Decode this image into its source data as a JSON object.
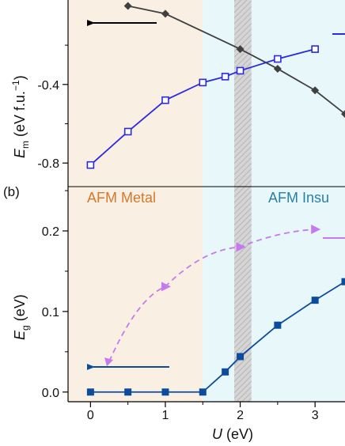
{
  "chart_data": [
    {
      "panel": "a",
      "type": "line",
      "ylabel": {
        "symbol": "E",
        "subscript": "m",
        "unit": " (eV f.u.",
        "exp": "−1",
        "close": ")"
      },
      "ylim": [
        -0.92,
        0.03
      ],
      "yticks": [
        -0.4,
        -0.8
      ],
      "ytick_labels": [
        "-0.4",
        "-0.8"
      ],
      "series": [
        {
          "color": "#404040",
          "marker": "diamond-filled",
          "x": [
            0.5,
            1,
            2,
            2.5,
            3,
            3.4
          ],
          "y": [
            0.0,
            -0.04,
            -0.22,
            -0.32,
            -0.43,
            -0.55
          ]
        },
        {
          "color": "#2a2ae0",
          "marker": "square-open",
          "x": [
            0,
            0.5,
            1,
            1.5,
            1.8,
            2,
            2.5,
            3
          ],
          "y": [
            -0.81,
            -0.64,
            -0.48,
            -0.39,
            -0.36,
            -0.33,
            -0.27,
            -0.22
          ]
        }
      ]
    },
    {
      "panel": "b",
      "panel_label": "(b)",
      "type": "line",
      "xlabel": {
        "symbol": "U",
        "unit": " (eV)"
      },
      "ylabel": {
        "symbol": "E",
        "subscript": "g",
        "unit": " (eV)"
      },
      "xlim": [
        -0.3,
        3.4
      ],
      "ylim": [
        -0.012,
        0.255
      ],
      "xticks": [
        0,
        1,
        2,
        3
      ],
      "xtick_labels": [
        "0",
        "1",
        "2",
        "3"
      ],
      "yticks": [
        0.0,
        0.1,
        0.2
      ],
      "ytick_labels": [
        "0.0",
        "0.1",
        "0.2"
      ],
      "regions": [
        {
          "label": "AFM Metal",
          "color": "#f9efe3",
          "label_color": "#d9772a",
          "x": [
            -0.3,
            1.5
          ]
        },
        {
          "label": "AFM Insu",
          "color": "#e8f7fa",
          "label_color": "#2a7fa5",
          "x": [
            1.5,
            3.4
          ]
        }
      ],
      "hatched_band": [
        1.92,
        2.15
      ],
      "series": [
        {
          "color": "#0c4c9c",
          "marker": "square-filled",
          "x": [
            0,
            0.5,
            1,
            1.5,
            1.8,
            2,
            2.5,
            3,
            3.4
          ],
          "y": [
            0,
            0,
            0,
            0,
            0.025,
            0.044,
            0.083,
            0.114,
            0.137
          ]
        },
        {
          "color": "#c77af0",
          "marker": "triangle-filled",
          "dashed": true,
          "x": [
            0.25,
            1,
            2,
            3
          ],
          "y": [
            0.038,
            0.131,
            0.18,
            0.202
          ]
        }
      ]
    }
  ]
}
